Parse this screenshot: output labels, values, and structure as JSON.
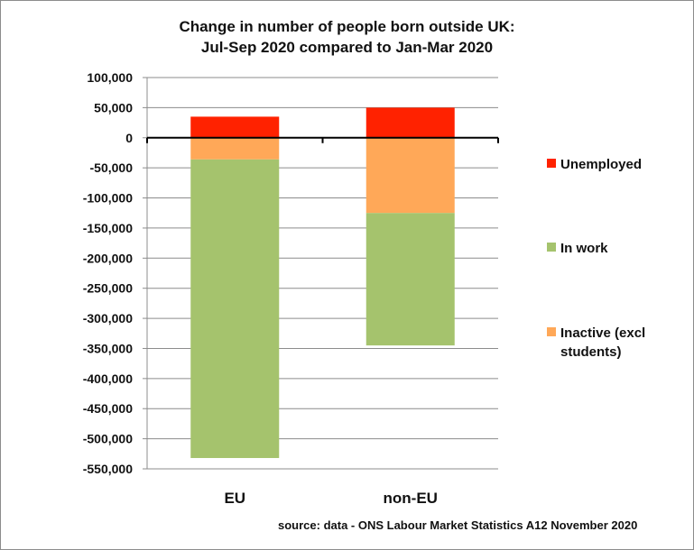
{
  "chart_data": {
    "type": "bar",
    "stacked": true,
    "title": [
      "Change in number of people born outside UK:",
      "Jul-Sep 2020 compared to Jan-Mar 2020"
    ],
    "categories": [
      "EU",
      "non-EU"
    ],
    "series": [
      {
        "name": "Unemployed",
        "color": "#ff2200",
        "values": [
          35000,
          50000
        ]
      },
      {
        "name": "Inactive (excl students)",
        "color": "#ffa858",
        "values": [
          -36000,
          -125000
        ]
      },
      {
        "name": "In work",
        "color": "#a5c36d",
        "values": [
          -496000,
          -220000
        ]
      }
    ],
    "legend_order": [
      "Unemployed",
      "In work",
      "Inactive (excl students)"
    ],
    "legend_position": "right",
    "ylim": [
      -550000,
      100000
    ],
    "ytick_step": 50000,
    "grid": true,
    "source": "source: data - ONS Labour Market Statistics A12 November 2020"
  }
}
